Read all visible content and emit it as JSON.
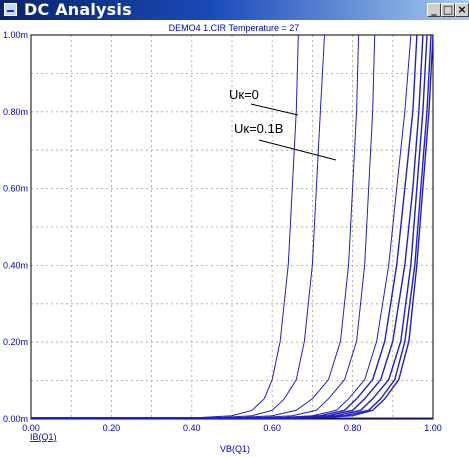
{
  "window": {
    "title": "DC Analysis",
    "buttons": {
      "minimize": "_",
      "maximize": "□",
      "close": "×"
    }
  },
  "plot": {
    "header": "DEMO4  1.CIR Temperature = 27",
    "y_ticks": [
      "1.00m",
      "0.80m",
      "0.60m",
      "0.40m",
      "0.20m",
      "0.00m"
    ],
    "x_ticks": [
      "0.00",
      "0.20",
      "0.40",
      "0.60",
      "0.80",
      "1.00"
    ],
    "y_trace_label": "IB(Q1)",
    "x_axis_label": "VB(Q1)",
    "annotations": [
      "Uк=0",
      "Uк=0.1В"
    ]
  },
  "colors": {
    "trace": "#2020c0",
    "grid": "#a0a0a0",
    "axis_text": "#0000cc",
    "header_text": "#0000cc"
  },
  "chart_data": {
    "type": "line",
    "xlabel": "VB(Q1)",
    "ylabel": "IB(Q1)",
    "xlim": [
      0,
      1.0
    ],
    "ylim": [
      0,
      0.001
    ],
    "grid": true,
    "series": [
      {
        "x": [
          0.4,
          0.5,
          0.55,
          0.58,
          0.6,
          0.62,
          0.64,
          0.65,
          0.66,
          0.665
        ],
        "y": [
          0,
          6e-06,
          2e-05,
          5e-05,
          0.0001,
          0.0002,
          0.0004,
          0.0006,
          0.0008,
          0.001
        ]
      },
      {
        "x": [
          0.45,
          0.55,
          0.6,
          0.63,
          0.66,
          0.68,
          0.7,
          0.71,
          0.72,
          0.73
        ],
        "y": [
          0,
          6e-06,
          2e-05,
          5e-05,
          0.0001,
          0.0002,
          0.0004,
          0.0006,
          0.0008,
          0.001
        ]
      },
      {
        "x": [
          0.5,
          0.6,
          0.66,
          0.7,
          0.74,
          0.77,
          0.79,
          0.8,
          0.81,
          0.815
        ],
        "y": [
          0,
          6e-06,
          2e-05,
          5e-05,
          0.0001,
          0.0002,
          0.0004,
          0.0006,
          0.0008,
          0.001
        ]
      },
      {
        "x": [
          0.55,
          0.65,
          0.71,
          0.74,
          0.78,
          0.81,
          0.83,
          0.84,
          0.85,
          0.855
        ],
        "y": [
          0,
          6e-06,
          2e-05,
          5e-05,
          0.0001,
          0.0002,
          0.0004,
          0.0006,
          0.0008,
          0.001
        ]
      },
      {
        "x": [
          0.6,
          0.7,
          0.76,
          0.79,
          0.83,
          0.86,
          0.89,
          0.91,
          0.93,
          0.945
        ],
        "y": [
          0,
          6e-06,
          2e-05,
          5e-05,
          0.0001,
          0.0002,
          0.0004,
          0.0006,
          0.0008,
          0.001
        ]
      },
      {
        "x": [
          0.62,
          0.72,
          0.78,
          0.81,
          0.85,
          0.88,
          0.91,
          0.93,
          0.95,
          0.96
        ],
        "y": [
          0,
          6e-06,
          2e-05,
          5e-05,
          0.0001,
          0.0002,
          0.0004,
          0.0006,
          0.0008,
          0.001
        ]
      },
      {
        "x": [
          0.64,
          0.74,
          0.8,
          0.83,
          0.87,
          0.9,
          0.93,
          0.95,
          0.965,
          0.975
        ],
        "y": [
          0,
          6e-06,
          2e-05,
          5e-05,
          0.0001,
          0.0002,
          0.0004,
          0.0006,
          0.0008,
          0.001
        ]
      },
      {
        "x": [
          0.66,
          0.76,
          0.82,
          0.85,
          0.89,
          0.92,
          0.945,
          0.96,
          0.975,
          0.985
        ],
        "y": [
          0,
          6e-06,
          2e-05,
          5e-05,
          0.0001,
          0.0002,
          0.0004,
          0.0006,
          0.0008,
          0.001
        ]
      },
      {
        "x": [
          0.68,
          0.78,
          0.84,
          0.87,
          0.905,
          0.93,
          0.955,
          0.97,
          0.985,
          0.995
        ],
        "y": [
          0,
          6e-06,
          2e-05,
          5e-05,
          0.0001,
          0.0002,
          0.0004,
          0.0006,
          0.0008,
          0.001
        ]
      },
      {
        "x": [
          0.7,
          0.8,
          0.85,
          0.88,
          0.915,
          0.94,
          0.96,
          0.975,
          0.99,
          1.0
        ],
        "y": [
          0,
          6e-06,
          2e-05,
          5e-05,
          0.0001,
          0.0002,
          0.0004,
          0.0006,
          0.0008,
          0.001
        ]
      }
    ]
  }
}
